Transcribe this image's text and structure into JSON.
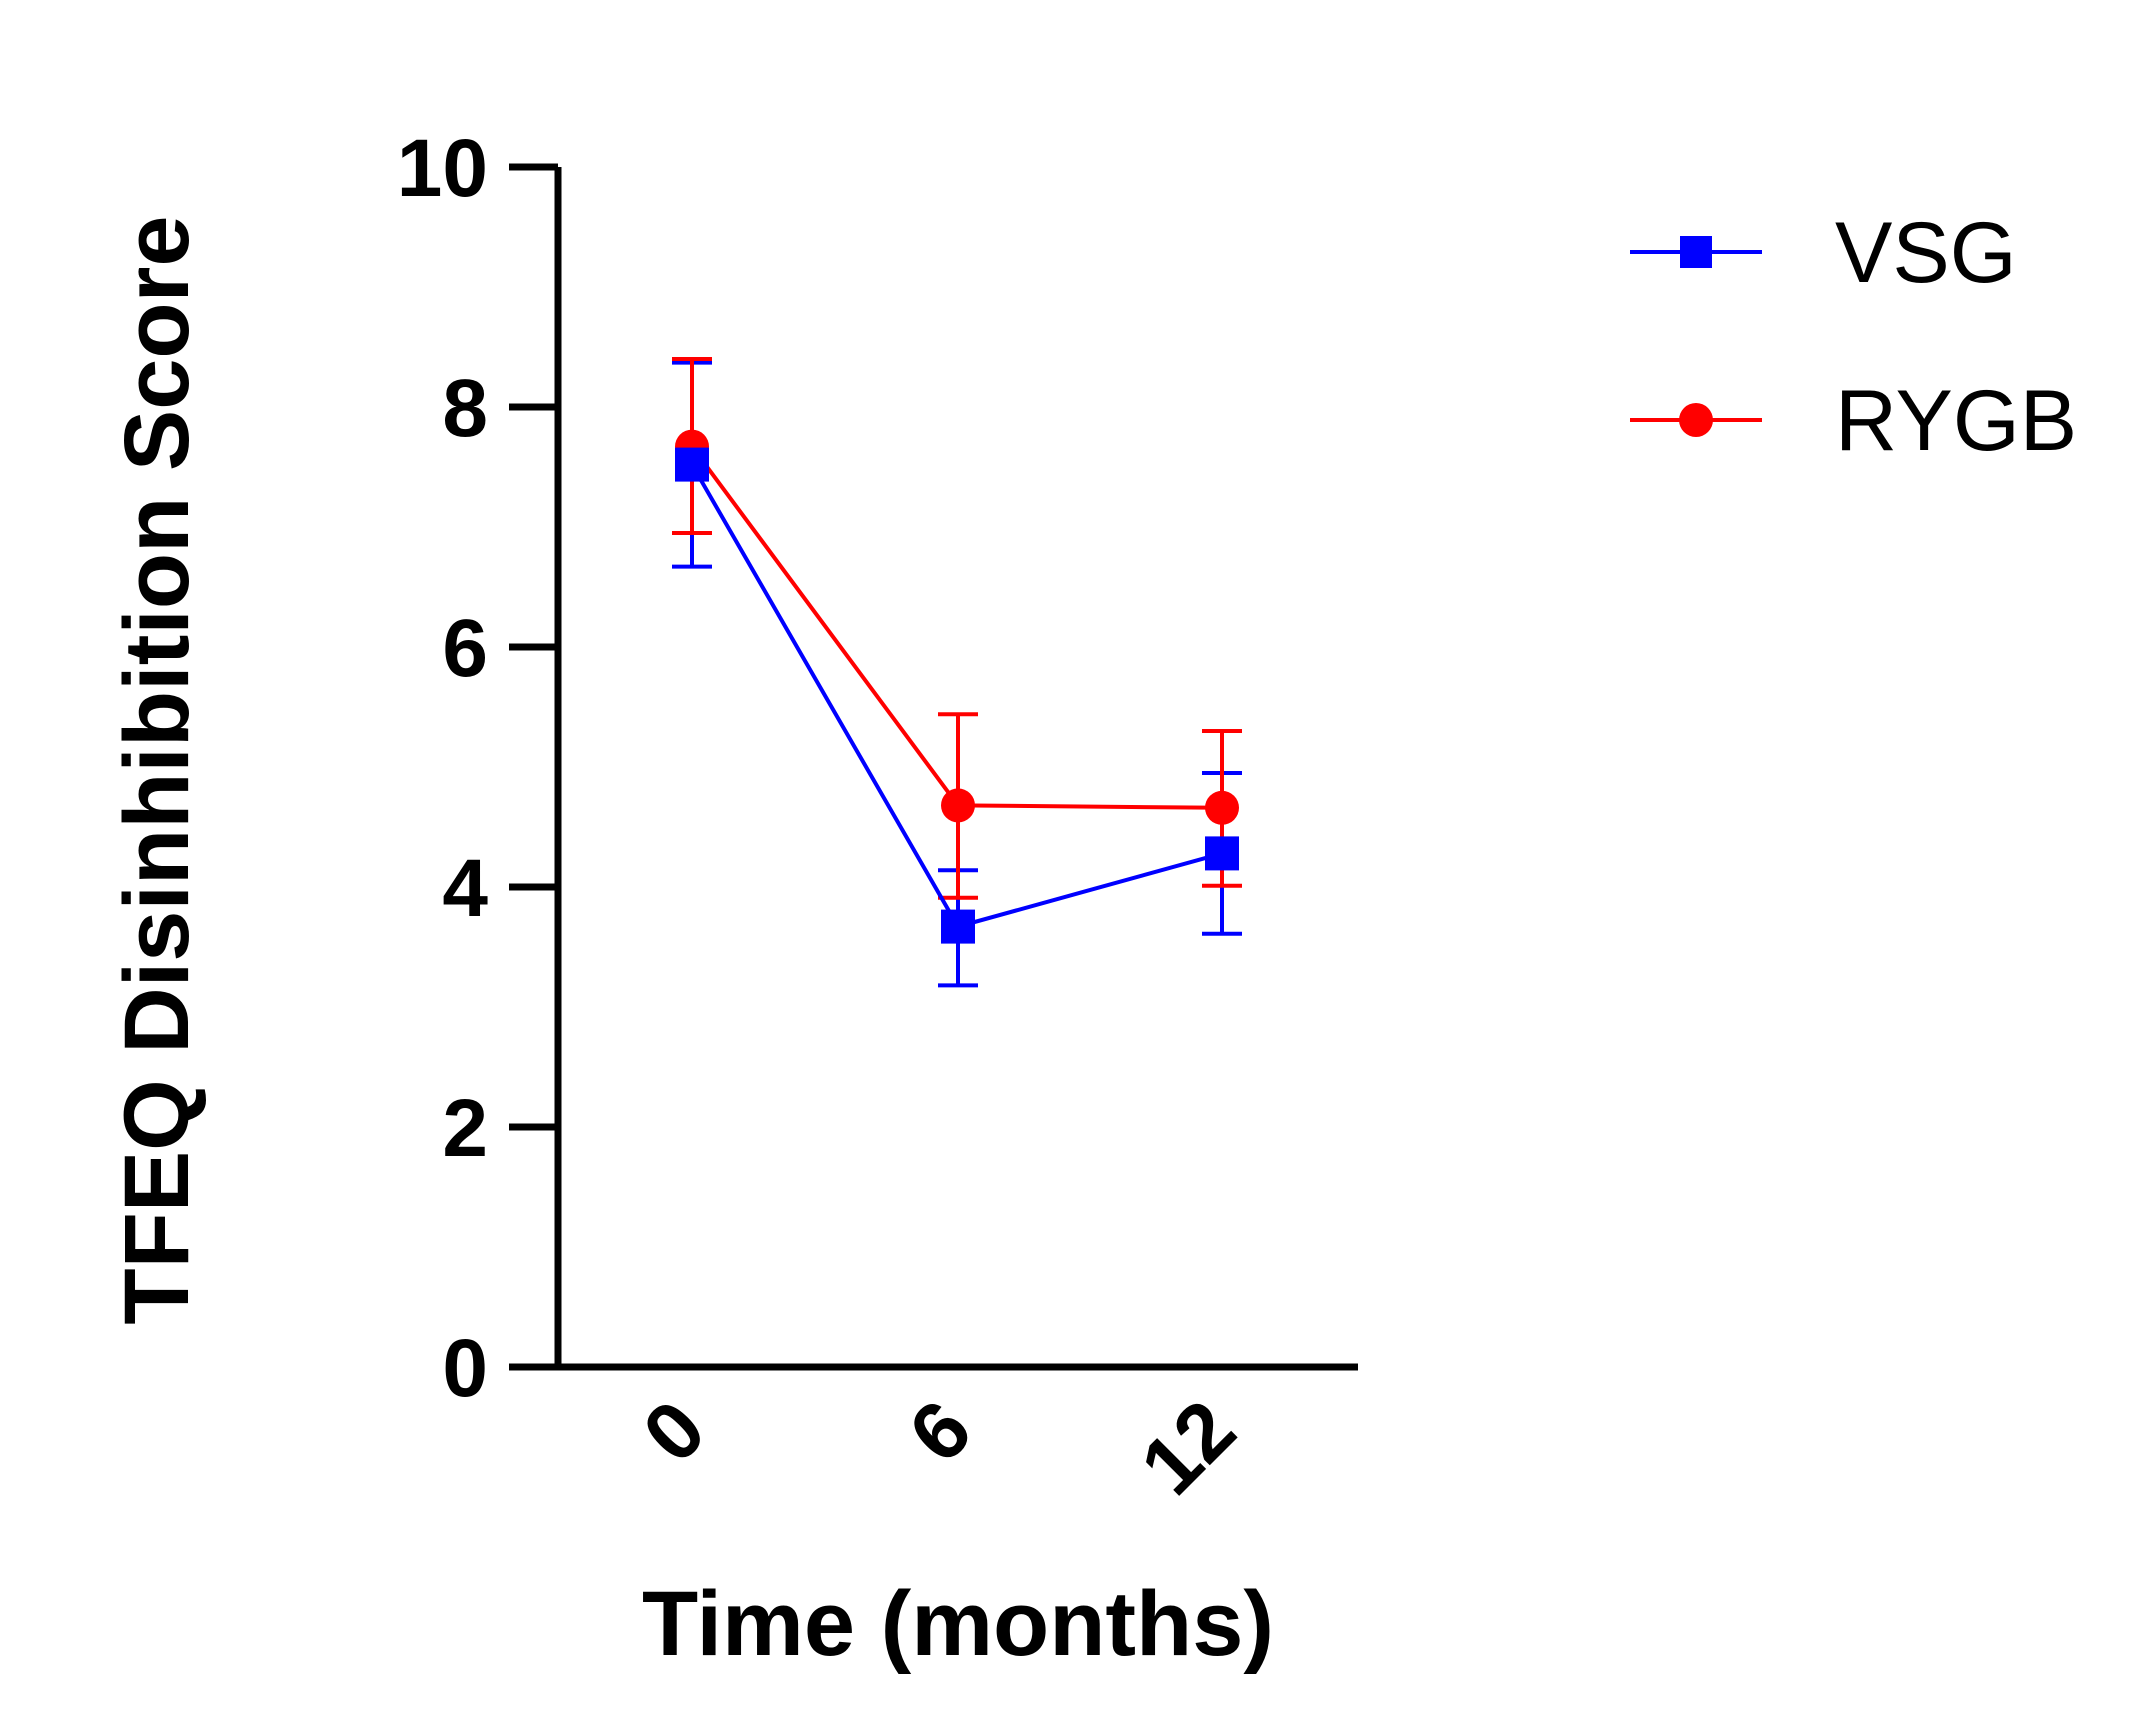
{
  "chart_data": {
    "type": "line",
    "title": "",
    "xlabel": "Time (months)",
    "ylabel": "TFEQ Disinhibition Score",
    "categories": [
      "0",
      "6",
      "12"
    ],
    "y_ticks": [
      "0",
      "2",
      "4",
      "6",
      "8",
      "10"
    ],
    "ylim": [
      0,
      10
    ],
    "grid": false,
    "legend_position": "top-right",
    "series": [
      {
        "name": "VSG",
        "color": "#0000FF",
        "marker": "square",
        "values": [
          7.52,
          3.67,
          4.28
        ],
        "err_upper": [
          8.37,
          4.14,
          4.95
        ],
        "err_lower": [
          6.67,
          3.18,
          3.61
        ]
      },
      {
        "name": "RYGB",
        "color": "#FF0000",
        "marker": "circle",
        "values": [
          7.67,
          4.68,
          4.66
        ],
        "err_upper": [
          8.4,
          5.44,
          5.3
        ],
        "err_lower": [
          6.95,
          3.91,
          4.01
        ]
      }
    ]
  }
}
